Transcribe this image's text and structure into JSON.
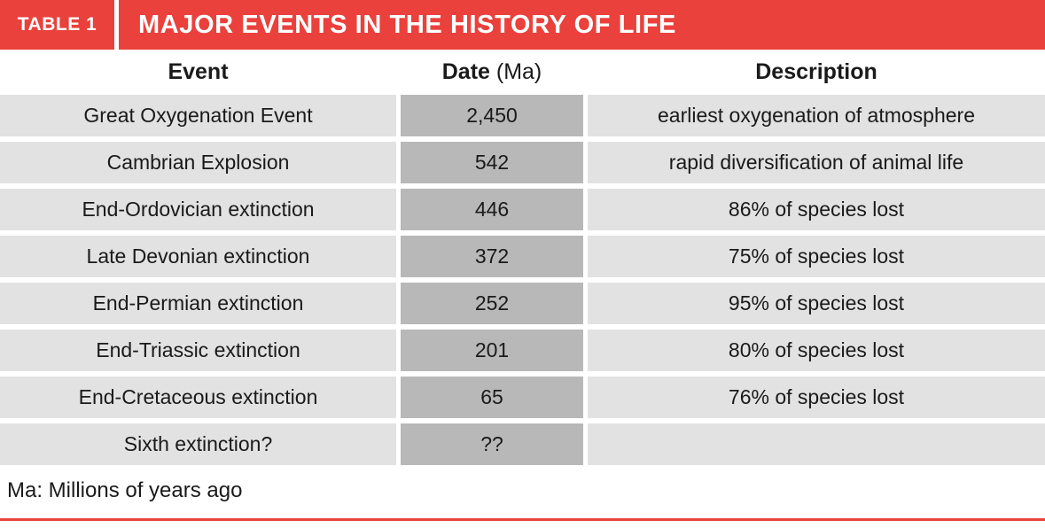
{
  "header": {
    "tag": "TABLE 1",
    "title": "MAJOR EVENTS IN THE HISTORY OF LIFE"
  },
  "columns": {
    "event": "Event",
    "date_main": "Date",
    "date_unit": "(Ma)",
    "description": "Description"
  },
  "chart_data": {
    "type": "table",
    "title": "MAJOR EVENTS IN THE HISTORY OF LIFE",
    "columns": [
      "Event",
      "Date (Ma)",
      "Description"
    ],
    "rows": [
      [
        "Great Oxygenation Event",
        "2,450",
        "earliest oxygenation of atmosphere"
      ],
      [
        "Cambrian Explosion",
        "542",
        "rapid diversification of animal life"
      ],
      [
        "End-Ordovician extinction",
        "446",
        "86% of species lost"
      ],
      [
        "Late Devonian extinction",
        "372",
        "75% of species lost"
      ],
      [
        "End-Permian extinction",
        "252",
        "95% of species lost"
      ],
      [
        "End-Triassic extinction",
        "201",
        "80% of species lost"
      ],
      [
        "End-Cretaceous extinction",
        "65",
        "76% of species lost"
      ],
      [
        "Sixth extinction?",
        "??",
        ""
      ]
    ],
    "footnote": "Ma: Millions of years ago"
  },
  "footnote": "Ma: Millions of years ago",
  "colors": {
    "accent_red": "#ea413c",
    "cell_light": "#e2e2e2",
    "cell_dark": "#b8b8b8"
  }
}
